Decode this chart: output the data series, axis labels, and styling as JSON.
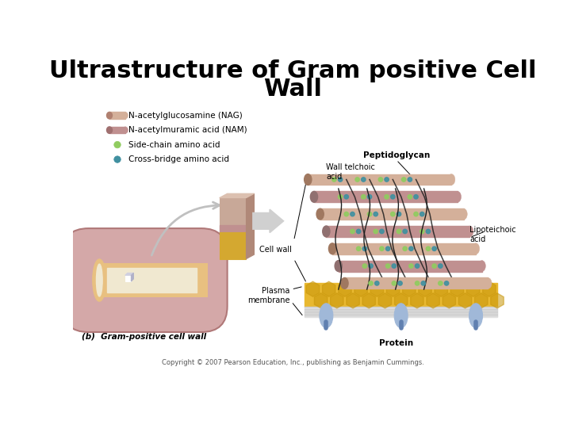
{
  "title_line1": "Ultrastructure of Gram positive Cell",
  "title_line2": "Wall",
  "title_fontsize": 22,
  "title_fontweight": "bold",
  "background_color": "#ffffff",
  "legend_items": [
    {
      "label": "N-acetylglucosamine (NAG)",
      "color_body": "#d4b09a",
      "color_cap": "#b08070",
      "type": "cylinder"
    },
    {
      "label": "N-acetylmuramic acid (NAM)",
      "color_body": "#c09090",
      "color_cap": "#a07070",
      "type": "cylinder"
    },
    {
      "label": "Side-chain amino acid",
      "color": "#90cc60",
      "type": "circle"
    },
    {
      "label": "Cross-bridge amino acid",
      "color": "#4090a0",
      "type": "circle"
    }
  ],
  "bottom_label": "(b)  Gram-positive cell wall",
  "copyright": "Copyright © 2007 Pearson Education, Inc., publishing as Benjamin Cummings.",
  "annotations": {
    "wall_teichoic_acid": "Wall telchoic\nacid",
    "peptidoglycan": "Peptidoglycan",
    "cell_wall": "Cell wall",
    "lipoteichoic_acid": "Lipoteichoic\nacid",
    "plasma_membrane": "Plasma\nmembrane",
    "protein": "Protein"
  },
  "bacterium_color": "#d4a8a8",
  "bacterium_wall_color": "#e8c080",
  "bacterium_inner_color": "#f0e8d0",
  "bacterium_outline": "#b07878",
  "block_top_color": "#c8a898",
  "block_mid_color": "#c09090",
  "block_bottom_color": "#d4a830",
  "block_side_color": "#a88070",
  "nag_color": "#d4b09a",
  "nam_color": "#c09090",
  "nag_cap": "#a07860",
  "nam_cap": "#907070",
  "membrane_hex_color": "#e8b830",
  "membrane_stripe_color": "#c8c8c8",
  "protein_color": "#a0b8d8",
  "amino_green": "#90cc60",
  "amino_teal": "#4090a0",
  "arrow_color": "#c0c0c0",
  "line_color": "#202020"
}
